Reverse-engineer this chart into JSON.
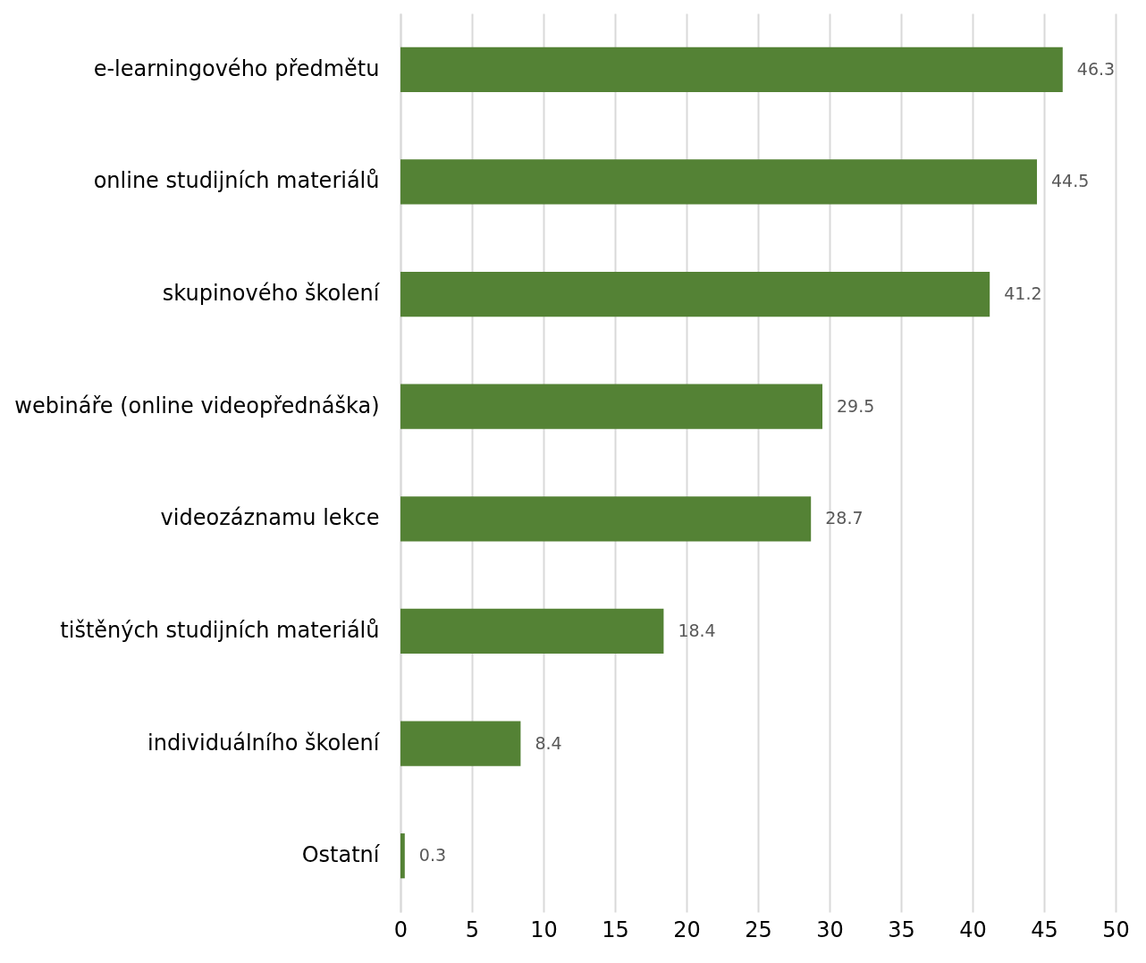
{
  "chart_data": {
    "type": "bar",
    "orientation": "horizontal",
    "categories": [
      "e-learningového předmětu",
      "online studijních materiálů",
      "skupinového školení",
      "webináře (online videopřednáška)",
      "videozáznamu lekce",
      "tištěných studijních materiálů",
      "individuálního školení",
      "Ostatní"
    ],
    "values": [
      46.3,
      44.5,
      41.2,
      29.5,
      28.7,
      18.4,
      8.4,
      0.3
    ],
    "color": "#548235",
    "xlim": [
      0,
      50
    ],
    "xticks": [
      0,
      5,
      10,
      15,
      20,
      25,
      30,
      35,
      40,
      45,
      50
    ],
    "grid": "x",
    "data_labels": true
  }
}
